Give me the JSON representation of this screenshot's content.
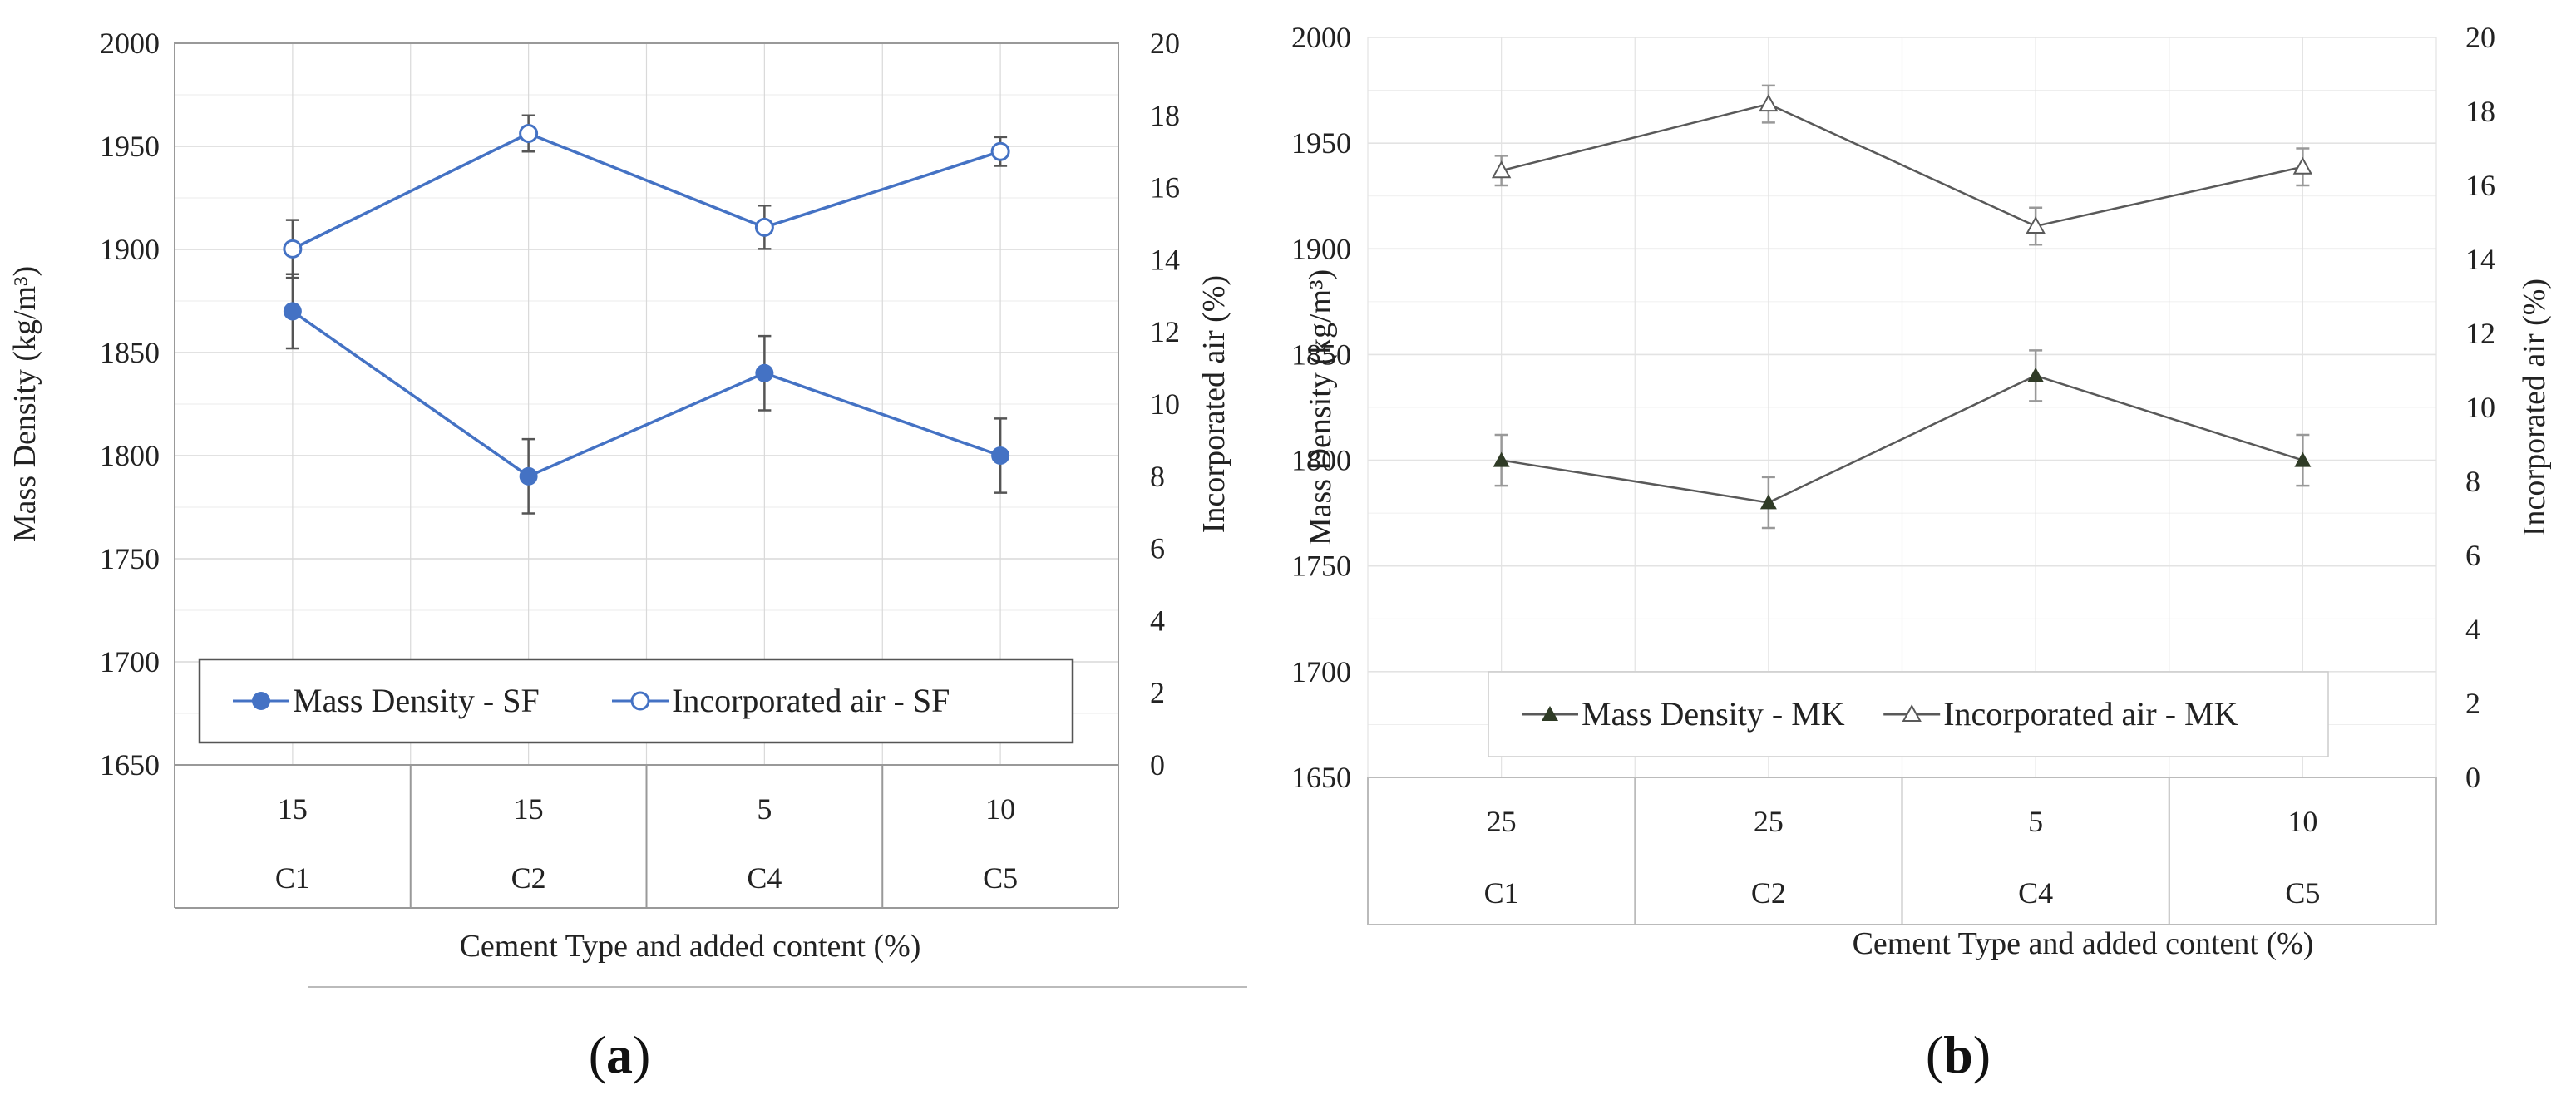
{
  "chart_data": [
    {
      "panel": "a",
      "type": "line",
      "panel_label": "(a)",
      "panel_label_parts": {
        "open": "(",
        "letter": "a",
        "close": ")"
      },
      "categories": [
        "C1",
        "C2",
        "C4",
        "C5"
      ],
      "added_content": [
        "15",
        "15",
        "5",
        "10"
      ],
      "xlabel": "Cement Type  and added content (%)",
      "ylabel_left": "Mass Density  (kg/m³)",
      "ylabel_right": "Incorporated air (%)",
      "ylim_left": [
        1650,
        2000
      ],
      "ylim_right": [
        0,
        20
      ],
      "yticks_left": [
        "1650",
        "1700",
        "1750",
        "1800",
        "1850",
        "1900",
        "1950",
        "2000"
      ],
      "yticks_right": [
        "0",
        "2",
        "4",
        "6",
        "8",
        "10",
        "12",
        "14",
        "16",
        "18",
        "20"
      ],
      "grid": true,
      "legend_position": "bottom-center inside plot",
      "colors": {
        "series": "#4472c4",
        "errorbar": "#555555",
        "grid": "#d9d9d9",
        "frame": "#999999"
      },
      "series": [
        {
          "name": "Mass Density - SF",
          "axis": "left",
          "marker": "filled-circle",
          "values": [
            1870,
            1790,
            1840,
            1800
          ],
          "error": [
            18,
            18,
            18,
            18
          ]
        },
        {
          "name": "Incorporated air - SF",
          "axis": "right",
          "marker": "open-circle",
          "values": [
            14.3,
            17.5,
            14.9,
            17.0
          ],
          "error": [
            0.8,
            0.5,
            0.6,
            0.4
          ]
        }
      ]
    },
    {
      "panel": "b",
      "type": "line",
      "panel_label": "(b)",
      "panel_label_parts": {
        "open": "(",
        "letter": "b",
        "close": ")"
      },
      "categories": [
        "C1",
        "C2",
        "C4",
        "C5"
      ],
      "added_content": [
        "25",
        "25",
        "5",
        "10"
      ],
      "xlabel": "Cement Type  and added content (%)",
      "ylabel_left": "Mass Density  (kg/m³)",
      "ylabel_right": "Incorporated air (%)",
      "ylim_left": [
        1650,
        2000
      ],
      "ylim_right": [
        0,
        20
      ],
      "yticks_left": [
        "1650",
        "1700",
        "1750",
        "1800",
        "1850",
        "1900",
        "1950",
        "2000"
      ],
      "yticks_right": [
        "0",
        "2",
        "4",
        "6",
        "8",
        "10",
        "12",
        "14",
        "16",
        "18",
        "20"
      ],
      "grid": true,
      "legend_position": "bottom-center inside plot",
      "colors": {
        "series": "#595959",
        "marker_filled": "#2f3b26",
        "errorbar": "#999999",
        "grid": "#e3e3e3",
        "frame": "#bbbbbb"
      },
      "series": [
        {
          "name": "Mass Density - MK",
          "axis": "left",
          "marker": "filled-triangle",
          "values": [
            1800,
            1780,
            1840,
            1800
          ],
          "error": [
            12,
            12,
            12,
            12
          ]
        },
        {
          "name": "Incorporated air - MK",
          "axis": "right",
          "marker": "open-triangle",
          "values": [
            16.4,
            18.2,
            14.9,
            16.5
          ],
          "error": [
            0.4,
            0.5,
            0.5,
            0.5
          ]
        }
      ]
    }
  ]
}
